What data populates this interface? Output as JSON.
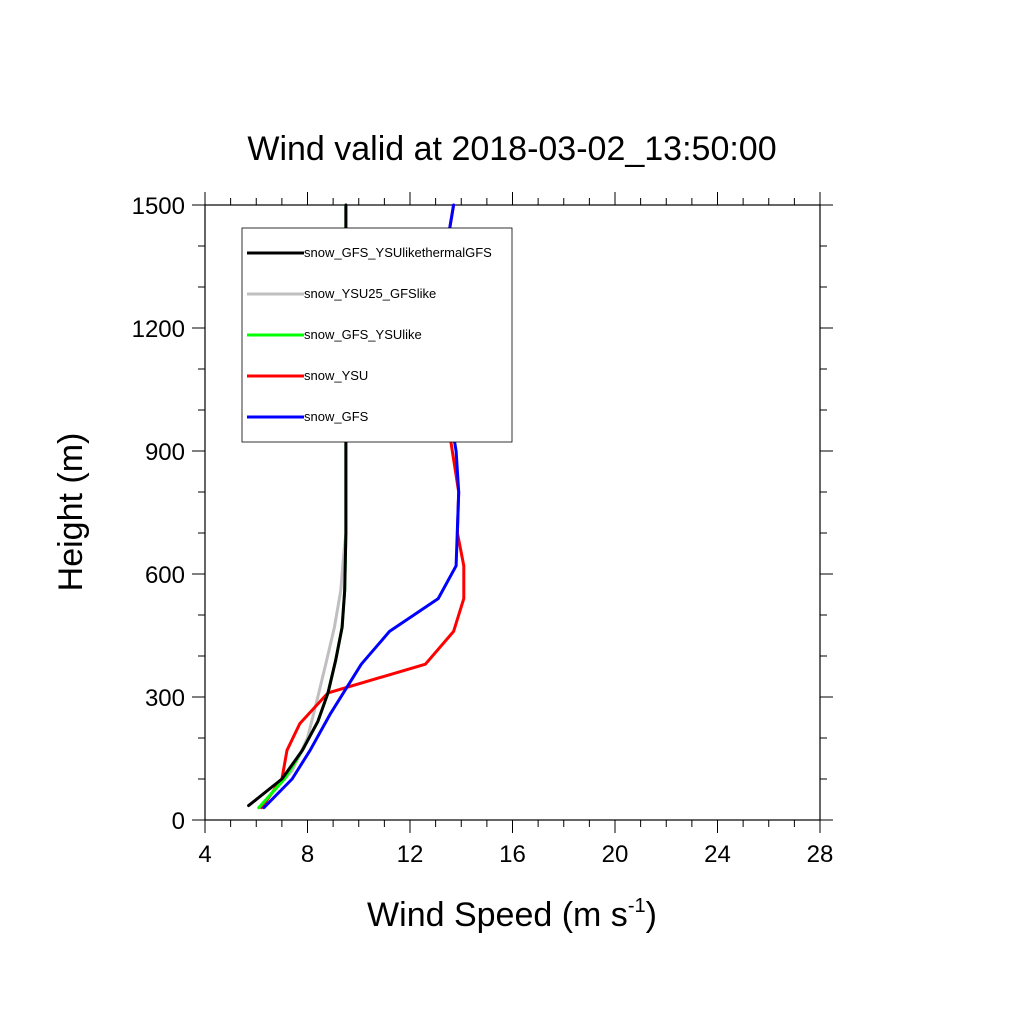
{
  "chart_data": {
    "type": "line",
    "title": "Wind valid at 2018-03-02_13:50:00",
    "xlabel": "Wind Speed (m s",
    "xlabel_sup": "-1",
    "xlabel_close": ")",
    "ylabel": "Height (m)",
    "xlim": [
      4,
      28
    ],
    "ylim": [
      0,
      1500
    ],
    "xticks": [
      4,
      8,
      12,
      16,
      20,
      24,
      28
    ],
    "xtick_labels": [
      "4",
      "8",
      "12",
      "16",
      "20",
      "24",
      "28"
    ],
    "yticks": [
      0,
      300,
      600,
      900,
      1200,
      1500
    ],
    "ytick_labels": [
      "0",
      "300",
      "600",
      "900",
      "1200",
      "1500"
    ],
    "grid": false,
    "legend_position": "top-left",
    "series": [
      {
        "name": "snow_GFS_YSUlikethermalGFS",
        "color": "#000000",
        "x": [
          5.7,
          7.0,
          7.8,
          8.4,
          8.8,
          9.1,
          9.35,
          9.45,
          9.5,
          9.5,
          9.5,
          9.5
        ],
        "y": [
          35,
          100,
          170,
          240,
          310,
          390,
          470,
          560,
          700,
          900,
          1200,
          1500
        ]
      },
      {
        "name": "snow_YSU25_GFSlike",
        "color": "#bfbfbf",
        "x": [
          6.1,
          7.4,
          8.0,
          8.4,
          8.75,
          9.05,
          9.3,
          9.4,
          9.5,
          9.5,
          9.5
        ],
        "y": [
          30,
          120,
          200,
          300,
          390,
          470,
          560,
          640,
          700,
          1200,
          1500
        ]
      },
      {
        "name": "snow_GFS_YSUlike",
        "color": "#00ff00",
        "x": [
          6.1,
          7.1,
          7.8,
          8.4,
          8.8,
          9.1,
          9.35,
          9.45,
          9.5,
          9.5,
          9.5
        ],
        "y": [
          30,
          100,
          170,
          240,
          310,
          390,
          470,
          560,
          700,
          1200,
          1500
        ]
      },
      {
        "name": "snow_YSU",
        "color": "#ff0000",
        "x": [
          6.2,
          7.0,
          7.2,
          7.7,
          8.8,
          12.6,
          13.7,
          14.1,
          14.1,
          13.85,
          13.9,
          13.4,
          13.0,
          13.3,
          13.7
        ],
        "y": [
          30,
          100,
          170,
          235,
          310,
          380,
          460,
          540,
          620,
          700,
          800,
          1000,
          1200,
          1350,
          1500
        ]
      },
      {
        "name": "snow_GFS",
        "color": "#0000ff",
        "x": [
          6.3,
          7.4,
          8.1,
          8.9,
          10.1,
          11.2,
          13.1,
          13.8,
          13.9,
          13.8,
          13.4,
          13.0,
          13.3,
          13.7
        ],
        "y": [
          30,
          100,
          170,
          260,
          380,
          460,
          540,
          620,
          800,
          900,
          1050,
          1180,
          1350,
          1500
        ]
      }
    ]
  }
}
